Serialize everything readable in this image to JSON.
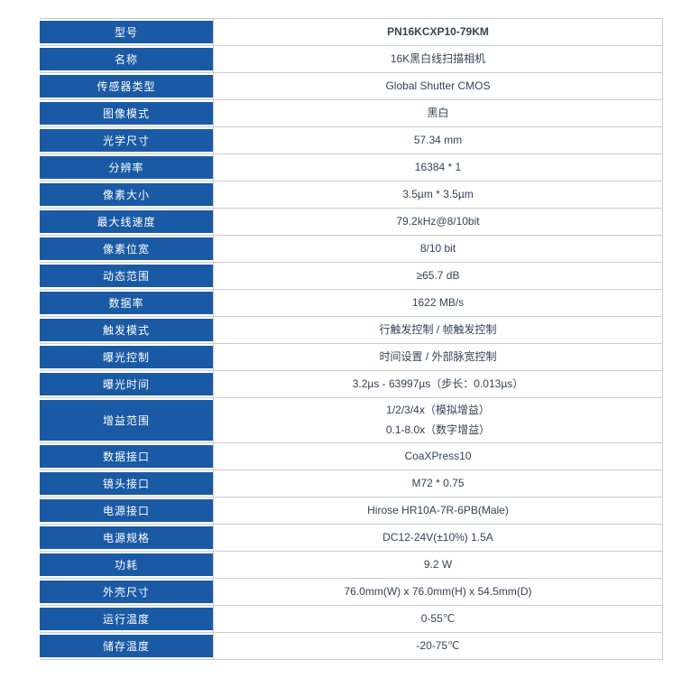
{
  "table": {
    "accent_color": "#1A5AA5",
    "border_color": "#cccccc",
    "rows": [
      {
        "label": "型号",
        "values": [
          "PN16KCXP10-79KM"
        ],
        "bold": true
      },
      {
        "label": "名称",
        "values": [
          "16K黑白线扫描相机"
        ]
      },
      {
        "label": "传感器类型",
        "values": [
          "Global Shutter CMOS"
        ]
      },
      {
        "label": "图像模式",
        "values": [
          "黑白"
        ]
      },
      {
        "label": "光学尺寸",
        "values": [
          "57.34 mm"
        ]
      },
      {
        "label": "分辨率",
        "values": [
          "16384 * 1"
        ]
      },
      {
        "label": "像素大小",
        "values": [
          "3.5µm * 3.5µm"
        ]
      },
      {
        "label": "最大线速度",
        "values": [
          "79.2kHz@8/10bit"
        ]
      },
      {
        "label": "像素位宽",
        "values": [
          "8/10 bit"
        ]
      },
      {
        "label": "动态范围",
        "values": [
          "≥65.7 dB"
        ]
      },
      {
        "label": "数据率",
        "values": [
          "1622 MB/s"
        ]
      },
      {
        "label": "触发模式",
        "values": [
          "行触发控制 / 帧触发控制"
        ]
      },
      {
        "label": "曝光控制",
        "values": [
          "时间设置 / 外部脉宽控制"
        ]
      },
      {
        "label": "曝光时间",
        "values": [
          "3.2µs - 63997µs（步长：0.013µs）"
        ]
      },
      {
        "label": "增益范围",
        "values": [
          "1/2/3/4x（模拟增益）",
          "0.1-8.0x（数字增益）"
        ]
      },
      {
        "label": "数据接口",
        "values": [
          "CoaXPress10"
        ]
      },
      {
        "label": "镜头接口",
        "values": [
          "M72 * 0.75"
        ]
      },
      {
        "label": "电源接口",
        "values": [
          "Hirose HR10A-7R-6PB(Male)"
        ]
      },
      {
        "label": "电源规格",
        "values": [
          "DC12-24V(±10%) 1.5A"
        ]
      },
      {
        "label": "功耗",
        "values": [
          "9.2 W"
        ]
      },
      {
        "label": "外壳尺寸",
        "values": [
          "76.0mm(W) x 76.0mm(H) x 54.5mm(D)"
        ]
      },
      {
        "label": "运行温度",
        "values": [
          "0-55℃"
        ]
      },
      {
        "label": "储存温度",
        "values": [
          "-20-75℃"
        ]
      }
    ]
  }
}
